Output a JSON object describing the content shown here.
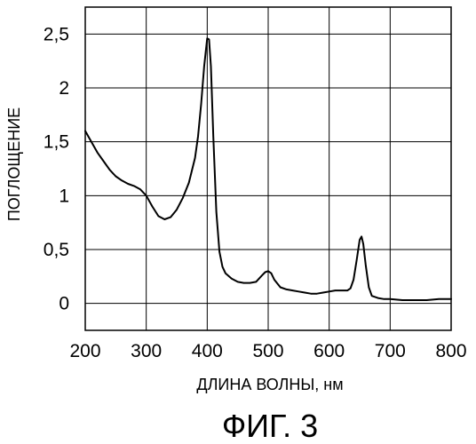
{
  "chart_data": {
    "type": "line",
    "title": "",
    "xlabel": "ДЛИНА ВОЛНЫ, нм",
    "ylabel": "ПОГЛОЩЕНИЕ",
    "xlim": [
      200,
      800
    ],
    "ylim": [
      -0.25,
      2.75
    ],
    "grid": true,
    "x_ticks": [
      "200",
      "300",
      "400",
      "500",
      "600",
      "700",
      "800"
    ],
    "y_ticks": [
      "0",
      "0,5",
      "1",
      "1,5",
      "2",
      "2,5"
    ],
    "x_tick_values": [
      200,
      300,
      400,
      500,
      600,
      700,
      800
    ],
    "y_tick_values": [
      0,
      0.5,
      1,
      1.5,
      2,
      2.5
    ],
    "series": [
      {
        "x": [
          200,
          210,
          220,
          230,
          240,
          250,
          260,
          270,
          280,
          290,
          300,
          310,
          320,
          330,
          340,
          350,
          360,
          370,
          380,
          385,
          390,
          395,
          400,
          403,
          406,
          410,
          415,
          420,
          425,
          430,
          440,
          450,
          460,
          470,
          480,
          490,
          495,
          500,
          505,
          510,
          520,
          530,
          540,
          550,
          560,
          570,
          580,
          590,
          600,
          610,
          620,
          630,
          635,
          640,
          645,
          650,
          653,
          656,
          660,
          665,
          670,
          680,
          690,
          700,
          720,
          740,
          760,
          780,
          800
        ],
        "y": [
          1.6,
          1.5,
          1.4,
          1.32,
          1.24,
          1.18,
          1.14,
          1.11,
          1.09,
          1.06,
          1.0,
          0.9,
          0.81,
          0.78,
          0.8,
          0.87,
          0.98,
          1.12,
          1.35,
          1.55,
          1.85,
          2.2,
          2.46,
          2.45,
          2.2,
          1.55,
          0.85,
          0.48,
          0.34,
          0.28,
          0.23,
          0.2,
          0.19,
          0.19,
          0.2,
          0.26,
          0.29,
          0.3,
          0.28,
          0.22,
          0.15,
          0.13,
          0.12,
          0.11,
          0.1,
          0.09,
          0.09,
          0.1,
          0.11,
          0.12,
          0.12,
          0.12,
          0.14,
          0.22,
          0.4,
          0.59,
          0.62,
          0.55,
          0.35,
          0.15,
          0.07,
          0.05,
          0.04,
          0.04,
          0.03,
          0.03,
          0.03,
          0.04,
          0.04
        ]
      }
    ]
  },
  "caption": "ФИГ. 3"
}
